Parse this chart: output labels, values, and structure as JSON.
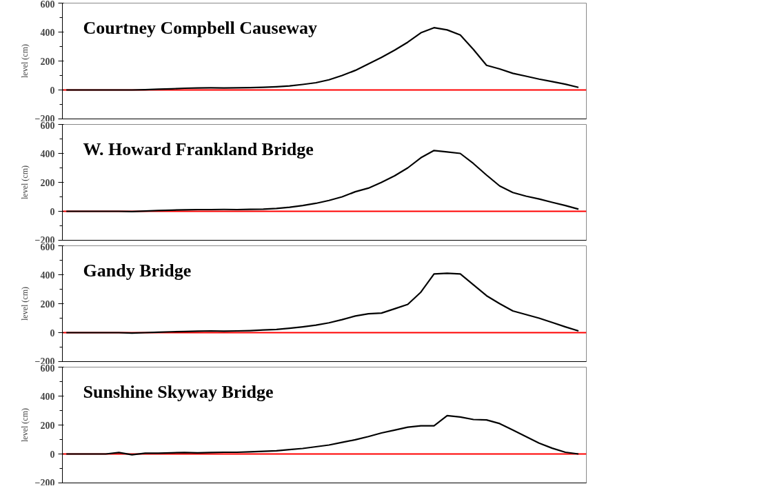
{
  "chart_data": [
    {
      "type": "line",
      "title": "Courtney Compbell Causeway",
      "ylabel": "level (cm)",
      "categories": [
        null,
        null,
        null,
        null,
        null,
        null,
        null,
        null,
        null,
        null,
        null,
        null,
        null,
        null,
        null,
        null,
        null,
        null,
        null,
        null,
        null,
        null,
        null,
        null,
        null,
        null,
        null,
        null,
        null,
        null,
        null,
        null,
        null,
        null,
        null,
        null,
        null,
        null,
        null,
        null
      ],
      "series": [
        {
          "color": "#000000",
          "values": [
            0,
            0,
            0,
            0,
            0,
            0,
            2,
            5,
            8,
            12,
            14,
            15,
            14,
            15,
            16,
            18,
            22,
            28,
            38,
            50,
            70,
            100,
            135,
            180,
            225,
            275,
            330,
            395,
            430,
            415,
            380,
            280,
            170,
            145,
            115,
            95,
            75,
            58,
            40,
            18
          ]
        }
      ],
      "ylim": [
        -200,
        600
      ],
      "yticks": [
        -200,
        0,
        200,
        400,
        600
      ],
      "ref_lines": [
        {
          "axis": "y",
          "value": 0,
          "color": "#ff0000"
        }
      ],
      "tick_labels": "y",
      "grid": false
    },
    {
      "type": "line",
      "title": "W. Howard Frankland Bridge",
      "ylabel": "level (cm)",
      "categories": [
        null,
        null,
        null,
        null,
        null,
        null,
        null,
        null,
        null,
        null,
        null,
        null,
        null,
        null,
        null,
        null,
        null,
        null,
        null,
        null,
        null,
        null,
        null,
        null,
        null,
        null,
        null,
        null,
        null,
        null,
        null,
        null,
        null,
        null,
        null,
        null,
        null,
        null,
        null,
        null
      ],
      "series": [
        {
          "color": "#000000",
          "values": [
            0,
            0,
            0,
            0,
            0,
            -2,
            2,
            5,
            8,
            10,
            12,
            12,
            13,
            12,
            14,
            15,
            20,
            28,
            40,
            55,
            75,
            100,
            135,
            160,
            200,
            245,
            300,
            370,
            420,
            410,
            400,
            330,
            250,
            175,
            130,
            105,
            85,
            62,
            40,
            15
          ]
        }
      ],
      "ylim": [
        -200,
        600
      ],
      "yticks": [
        -200,
        0,
        200,
        400,
        600
      ],
      "ref_lines": [
        {
          "axis": "y",
          "value": 0,
          "color": "#ff0000"
        }
      ],
      "tick_labels": "y",
      "grid": false
    },
    {
      "type": "line",
      "title": "Gandy Bridge",
      "ylabel": "level (cm)",
      "categories": [
        null,
        null,
        null,
        null,
        null,
        null,
        null,
        null,
        null,
        null,
        null,
        null,
        null,
        null,
        null,
        null,
        null,
        null,
        null,
        null,
        null,
        null,
        null,
        null,
        null,
        null,
        null,
        null,
        null,
        null,
        null,
        null,
        null,
        null,
        null,
        null,
        null,
        null,
        null,
        null
      ],
      "series": [
        {
          "color": "#000000",
          "values": [
            0,
            0,
            0,
            0,
            0,
            -3,
            0,
            3,
            6,
            8,
            10,
            12,
            10,
            12,
            14,
            18,
            22,
            30,
            40,
            52,
            68,
            90,
            115,
            130,
            135,
            165,
            195,
            280,
            405,
            410,
            405,
            330,
            255,
            200,
            150,
            125,
            100,
            70,
            40,
            12
          ]
        }
      ],
      "ylim": [
        -200,
        600
      ],
      "yticks": [
        -200,
        0,
        200,
        400,
        600
      ],
      "ref_lines": [
        {
          "axis": "y",
          "value": 0,
          "color": "#ff0000"
        }
      ],
      "tick_labels": "y",
      "grid": false
    },
    {
      "type": "line",
      "title": "Sunshine Skyway Bridge",
      "ylabel": "level (cm)",
      "categories": [
        null,
        null,
        null,
        null,
        null,
        null,
        null,
        null,
        null,
        null,
        null,
        null,
        null,
        null,
        null,
        null,
        null,
        null,
        null,
        null,
        null,
        null,
        null,
        null,
        null,
        null,
        null,
        null,
        null,
        null,
        null,
        null,
        null,
        null,
        null,
        null,
        null,
        null,
        null,
        null
      ],
      "series": [
        {
          "color": "#000000",
          "values": [
            0,
            0,
            0,
            0,
            10,
            -5,
            5,
            5,
            8,
            10,
            8,
            10,
            12,
            12,
            15,
            18,
            22,
            30,
            38,
            50,
            62,
            80,
            98,
            120,
            145,
            165,
            185,
            195,
            195,
            265,
            255,
            238,
            235,
            210,
            165,
            120,
            75,
            40,
            12,
            0
          ]
        }
      ],
      "ylim": [
        -200,
        600
      ],
      "yticks": [
        -200,
        0,
        200,
        400,
        600
      ],
      "ref_lines": [
        {
          "axis": "y",
          "value": 0,
          "color": "#ff0000"
        }
      ],
      "tick_labels": "y",
      "grid": false
    }
  ]
}
